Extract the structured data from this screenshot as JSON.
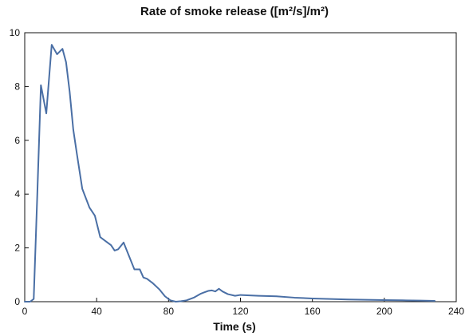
{
  "chart_data": {
    "type": "line",
    "title": "Rate of smoke release ([m²/s]/m²)",
    "xlabel": "Time (s)",
    "ylabel": "",
    "xlim": [
      0,
      240
    ],
    "ylim": [
      0,
      10
    ],
    "xticks": [
      0,
      40,
      80,
      120,
      160,
      200,
      240
    ],
    "yticks": [
      0,
      2,
      4,
      6,
      8,
      10
    ],
    "grid": false,
    "series": [
      {
        "color": "#4a6fa5",
        "x": [
          0,
          3,
          5,
          7,
          9,
          12,
          15,
          18,
          21,
          23,
          25,
          27,
          29,
          32,
          36,
          39,
          42,
          45,
          48,
          50,
          52,
          55,
          58,
          61,
          64,
          66,
          68,
          71,
          75,
          78,
          81,
          84,
          87,
          90,
          94,
          98,
          102,
          104,
          106,
          108,
          110,
          113,
          117,
          120,
          130,
          140,
          150,
          160,
          170,
          180,
          190,
          200,
          210,
          220,
          228
        ],
        "y": [
          0,
          0,
          0.1,
          4,
          8.05,
          7.0,
          9.55,
          9.2,
          9.4,
          8.9,
          7.8,
          6.4,
          5.5,
          4.2,
          3.5,
          3.2,
          2.4,
          2.25,
          2.1,
          1.9,
          1.95,
          2.2,
          1.7,
          1.2,
          1.2,
          0.9,
          0.85,
          0.7,
          0.45,
          0.2,
          0.05,
          0.0,
          0.02,
          0.05,
          0.15,
          0.3,
          0.4,
          0.42,
          0.38,
          0.48,
          0.38,
          0.28,
          0.22,
          0.25,
          0.22,
          0.2,
          0.15,
          0.12,
          0.1,
          0.08,
          0.07,
          0.06,
          0.05,
          0.04,
          0.03
        ]
      }
    ]
  }
}
